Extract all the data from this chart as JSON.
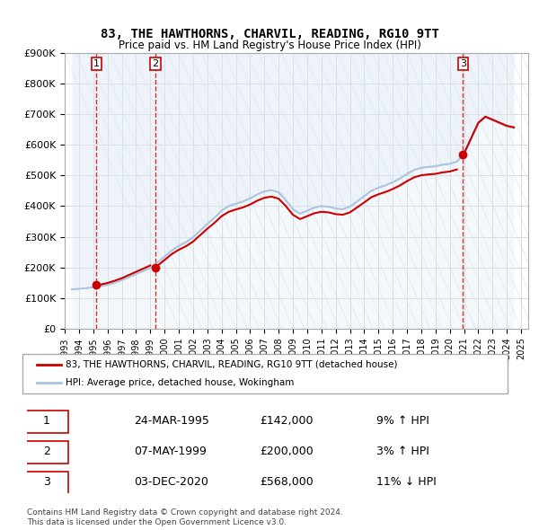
{
  "title": "83, THE HAWTHORNS, CHARVIL, READING, RG10 9TT",
  "subtitle": "Price paid vs. HM Land Registry's House Price Index (HPI)",
  "ylabel": "",
  "ylim": [
    0,
    900000
  ],
  "yticks": [
    0,
    100000,
    200000,
    300000,
    400000,
    500000,
    600000,
    700000,
    800000,
    900000
  ],
  "ytick_labels": [
    "£0",
    "£100K",
    "£200K",
    "£300K",
    "£400K",
    "£500K",
    "£600K",
    "£700K",
    "£800K",
    "£900K"
  ],
  "hpi_color": "#aac4e0",
  "price_color": "#cc0000",
  "dot_color": "#cc0000",
  "bg_hatch_color": "#dce8f5",
  "grid_color": "#cccccc",
  "sale_dates": [
    "1995-03-24",
    "1999-05-07",
    "2020-12-03"
  ],
  "sale_prices": [
    142000,
    200000,
    568000
  ],
  "sale_labels": [
    "1",
    "2",
    "3"
  ],
  "legend_label_price": "83, THE HAWTHORNS, CHARVIL, READING, RG10 9TT (detached house)",
  "legend_label_hpi": "HPI: Average price, detached house, Wokingham",
  "table_rows": [
    [
      "1",
      "24-MAR-1995",
      "£142,000",
      "9% ↑ HPI"
    ],
    [
      "2",
      "07-MAY-1999",
      "£200,000",
      "3% ↑ HPI"
    ],
    [
      "3",
      "03-DEC-2020",
      "£568,000",
      "11% ↓ HPI"
    ]
  ],
  "footer": "Contains HM Land Registry data © Crown copyright and database right 2024.\nThis data is licensed under the Open Government Licence v3.0.",
  "hpi_data_years": [
    1993.5,
    1994.0,
    1994.5,
    1995.0,
    1995.5,
    1996.0,
    1996.5,
    1997.0,
    1997.5,
    1998.0,
    1998.5,
    1999.0,
    1999.5,
    2000.0,
    2000.5,
    2001.0,
    2001.5,
    2002.0,
    2002.5,
    2003.0,
    2003.5,
    2004.0,
    2004.5,
    2005.0,
    2005.5,
    2006.0,
    2006.5,
    2007.0,
    2007.5,
    2008.0,
    2008.5,
    2009.0,
    2009.5,
    2010.0,
    2010.5,
    2011.0,
    2011.5,
    2012.0,
    2012.5,
    2013.0,
    2013.5,
    2014.0,
    2014.5,
    2015.0,
    2015.5,
    2016.0,
    2016.5,
    2017.0,
    2017.5,
    2018.0,
    2018.5,
    2019.0,
    2019.5,
    2020.0,
    2020.5,
    2021.0,
    2021.5,
    2022.0,
    2022.5,
    2023.0,
    2023.5,
    2024.0,
    2024.5
  ],
  "hpi_data_values": [
    128000,
    130000,
    132000,
    135000,
    138000,
    143000,
    150000,
    158000,
    168000,
    178000,
    188000,
    198000,
    215000,
    235000,
    255000,
    270000,
    282000,
    298000,
    320000,
    342000,
    362000,
    385000,
    400000,
    408000,
    415000,
    425000,
    438000,
    448000,
    452000,
    445000,
    420000,
    390000,
    375000,
    385000,
    395000,
    400000,
    398000,
    392000,
    390000,
    398000,
    415000,
    432000,
    450000,
    460000,
    468000,
    478000,
    490000,
    505000,
    518000,
    525000,
    528000,
    530000,
    535000,
    538000,
    545000,
    570000,
    620000,
    670000,
    690000,
    680000,
    670000,
    660000,
    655000
  ],
  "xtick_years": [
    1993,
    1994,
    1995,
    1996,
    1997,
    1998,
    1999,
    2000,
    2001,
    2002,
    2003,
    2004,
    2005,
    2006,
    2007,
    2008,
    2009,
    2010,
    2011,
    2012,
    2013,
    2014,
    2015,
    2016,
    2017,
    2018,
    2019,
    2020,
    2021,
    2022,
    2023,
    2024,
    2025
  ]
}
